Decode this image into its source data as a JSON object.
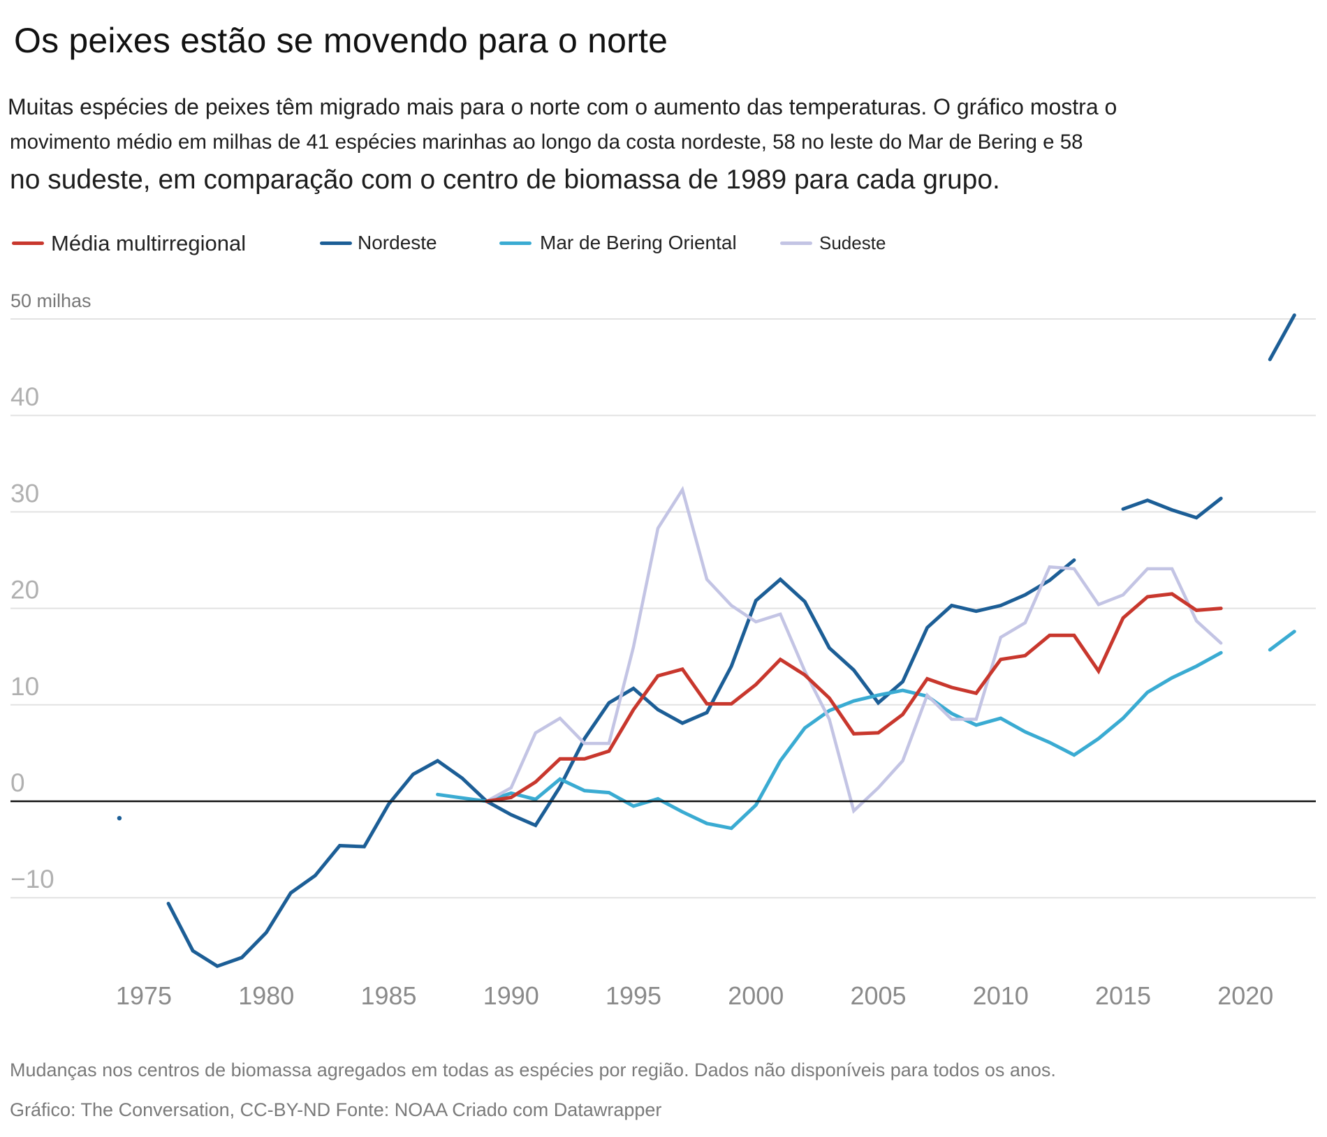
{
  "header": {
    "title": "Os peixes estão se movendo para o norte",
    "subtitle_lines": [
      "Muitas espécies de peixes têm migrado mais para o norte com o aumento das temperaturas. O gráfico mostra o",
      "movimento médio em milhas de 41 espécies marinhas ao longo da costa nordeste, 58 no leste do Mar de Bering e 58",
      "no sudeste, em comparação com o centro de biomassa de 1989 para cada grupo."
    ]
  },
  "legend": [
    {
      "label": "Média multirregional",
      "color": "#c8372d"
    },
    {
      "label": "Nordeste",
      "color": "#1c5e96"
    },
    {
      "label": "Mar de Bering Oriental",
      "color": "#3aabd2"
    },
    {
      "label": "Sudeste",
      "color": "#c3c4e4"
    }
  ],
  "footer": {
    "note": "Mudanças nos centros de biomassa agregados em todas as espécies por região. Dados não disponíveis para todos os anos.",
    "credit": "Gráfico: The Conversation, CC-BY-ND Fonte: NOAA Criado com Datawrapper"
  },
  "chart_data": {
    "type": "line",
    "title": "Os peixes estão se movendo para o norte",
    "xlabel": "",
    "ylabel": "milhas",
    "unit_label": "50 milhas",
    "xlim": [
      1974,
      2022
    ],
    "ylim": [
      -18,
      51
    ],
    "grid": true,
    "legend_position": "top-left",
    "x_ticks": [
      1975,
      1980,
      1985,
      1990,
      1995,
      2000,
      2005,
      2010,
      2015,
      2020
    ],
    "x_tick_labels": [
      "1975",
      "1980",
      "1985",
      "1990",
      "1995",
      "2000",
      "2005",
      "2010",
      "2015",
      "2020"
    ],
    "y_ticks": [
      40,
      30,
      20,
      10,
      0,
      -10
    ],
    "y_tick_labels": [
      "40",
      "30",
      "20",
      "10",
      "0",
      "−10"
    ],
    "y_top_gridline": 50,
    "x": [
      1974,
      1975,
      1976,
      1977,
      1978,
      1979,
      1980,
      1981,
      1982,
      1983,
      1984,
      1985,
      1986,
      1987,
      1988,
      1989,
      1990,
      1991,
      1992,
      1993,
      1994,
      1995,
      1996,
      1997,
      1998,
      1999,
      2000,
      2001,
      2002,
      2003,
      2004,
      2005,
      2006,
      2007,
      2008,
      2009,
      2010,
      2011,
      2012,
      2013,
      2014,
      2015,
      2016,
      2017,
      2018,
      2019,
      2020,
      2021,
      2022
    ],
    "series": [
      {
        "name": "Nordeste",
        "color": "#1c5e96",
        "values": [
          -1.75,
          null,
          -10.6,
          -15.5,
          -17.1,
          -16.2,
          -13.6,
          -9.5,
          -7.7,
          -4.6,
          -4.7,
          -0.3,
          2.8,
          4.2,
          2.4,
          0,
          -1.4,
          -2.5,
          1.5,
          6.5,
          10.2,
          11.7,
          9.5,
          8.1,
          9.2,
          14.0,
          20.8,
          23.0,
          20.7,
          15.9,
          13.6,
          10.2,
          12.4,
          18.0,
          20.3,
          19.7,
          20.3,
          21.4,
          22.9,
          25.0,
          null,
          30.3,
          31.2,
          30.2,
          29.4,
          31.4,
          null,
          45.8,
          50.4
        ]
      },
      {
        "name": "Mar de Bering Oriental",
        "color": "#3aabd2",
        "values": [
          null,
          null,
          null,
          null,
          null,
          null,
          null,
          null,
          null,
          null,
          null,
          null,
          null,
          0.7,
          0.35,
          0,
          0.85,
          0.2,
          2.3,
          1.1,
          0.9,
          -0.5,
          0.25,
          -1.1,
          -2.3,
          -2.8,
          -0.4,
          4.2,
          7.6,
          9.4,
          10.4,
          11.0,
          11.5,
          10.9,
          9.1,
          7.9,
          8.6,
          7.2,
          6.1,
          4.8,
          6.5,
          8.6,
          11.3,
          12.8,
          14.0,
          15.4,
          null,
          15.7,
          17.6
        ]
      },
      {
        "name": "Sudeste",
        "color": "#c3c4e4",
        "values": [
          null,
          null,
          null,
          null,
          null,
          null,
          null,
          null,
          null,
          null,
          null,
          null,
          null,
          null,
          null,
          0,
          1.4,
          7.1,
          8.6,
          6.0,
          6.0,
          16.0,
          28.3,
          32.3,
          23.0,
          20.3,
          18.6,
          19.4,
          13.5,
          8.5,
          -1.0,
          1.4,
          4.2,
          11.0,
          8.5,
          8.5,
          17.0,
          18.5,
          24.3,
          24.1,
          20.4,
          21.4,
          24.1,
          24.1,
          18.7,
          16.4,
          null,
          null,
          null
        ]
      },
      {
        "name": "Média multirregional",
        "color": "#c8372d",
        "values": [
          null,
          null,
          null,
          null,
          null,
          null,
          null,
          null,
          null,
          null,
          null,
          null,
          null,
          null,
          null,
          0,
          0.4,
          2.0,
          4.4,
          4.4,
          5.2,
          9.5,
          13.0,
          13.7,
          10.1,
          10.1,
          12.1,
          14.7,
          13.1,
          10.7,
          7.0,
          7.1,
          9.0,
          12.7,
          11.8,
          11.2,
          14.7,
          15.1,
          17.2,
          17.2,
          13.5,
          19.0,
          21.2,
          21.5,
          19.8,
          20.0,
          null,
          null,
          null
        ]
      }
    ]
  }
}
